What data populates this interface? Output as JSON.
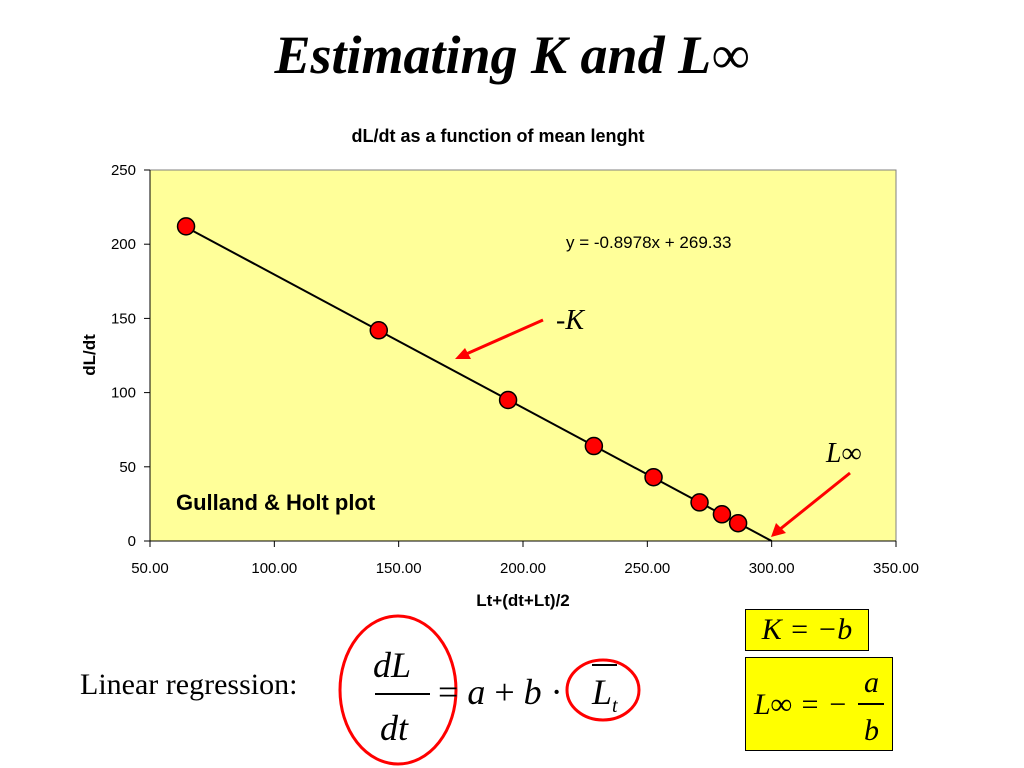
{
  "slide": {
    "title": "Estimating K and L∞"
  },
  "chart_data": {
    "type": "scatter",
    "title": "dL/dt as a function of mean lenght",
    "xlabel": "Lt+(dt+Lt)/2",
    "ylabel": "dL/dt",
    "xlim": [
      50,
      350
    ],
    "ylim": [
      0,
      250
    ],
    "x_ticks": [
      "50.00",
      "100.00",
      "150.00",
      "200.00",
      "250.00",
      "300.00",
      "350.00"
    ],
    "y_ticks": [
      "0",
      "50",
      "100",
      "150",
      "200",
      "250"
    ],
    "grid": false,
    "plot_background": "#ffff99",
    "marker_color": "#ff0000",
    "points": [
      {
        "x": 64.5,
        "y": 212
      },
      {
        "x": 142,
        "y": 142
      },
      {
        "x": 194,
        "y": 95
      },
      {
        "x": 228.5,
        "y": 64
      },
      {
        "x": 252.5,
        "y": 43
      },
      {
        "x": 271,
        "y": 26
      },
      {
        "x": 280,
        "y": 18
      },
      {
        "x": 286.5,
        "y": 12
      }
    ],
    "trendline": {
      "slope": -0.8978,
      "intercept": 269.33,
      "x_range": [
        64.5,
        300
      ]
    },
    "equation_label": "y = -0.8978x + 269.33",
    "plot_label": "Gulland & Holt plot",
    "annotations": [
      {
        "text": "-K",
        "arrow_color": "#ff0000"
      },
      {
        "text": "L∞",
        "arrow_color": "#ff0000"
      }
    ]
  },
  "formula": {
    "label": "Linear regression:",
    "highlight_color": "#ff0000"
  },
  "boxes": {
    "color": "#ffff00",
    "k_equation": "K = −b",
    "linf_lhs": "L∞ = −",
    "linf_num": "a",
    "linf_den": "b"
  }
}
